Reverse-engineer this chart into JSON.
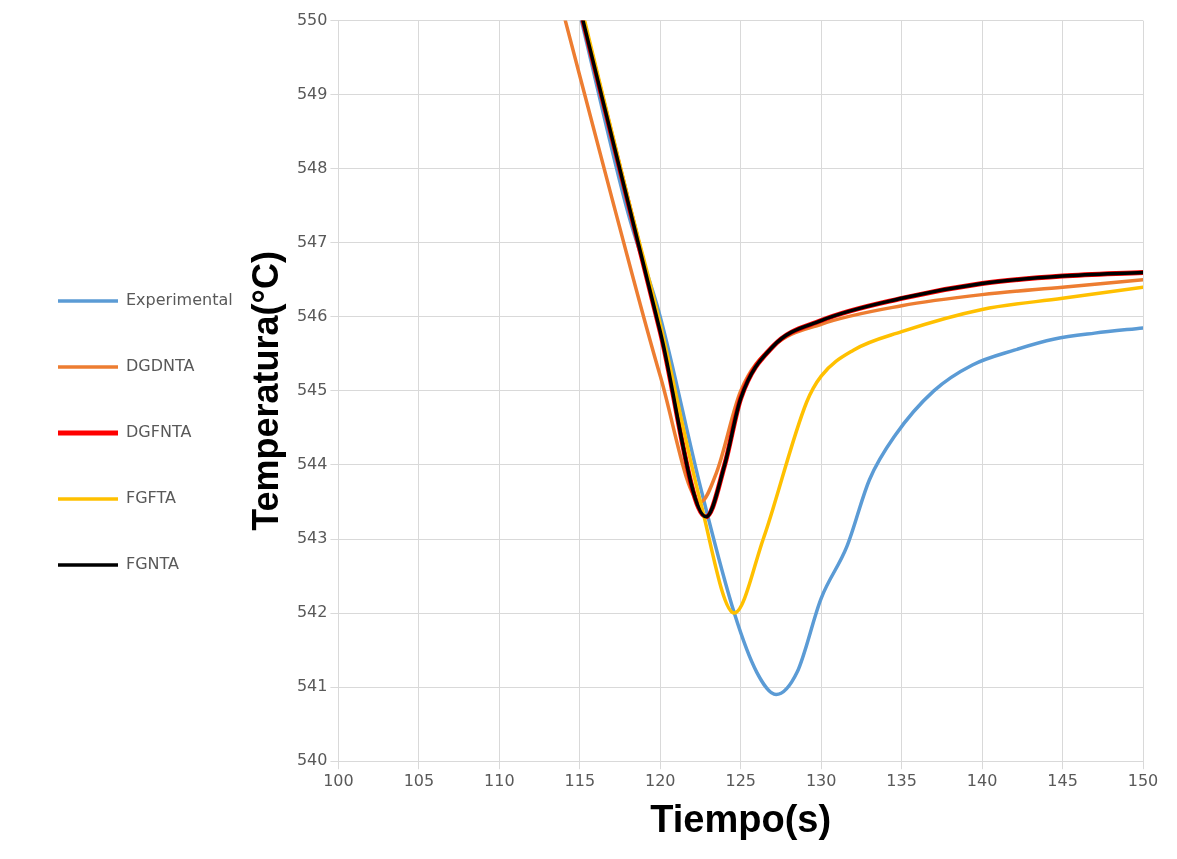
{
  "chart_data": {
    "type": "line",
    "xlabel": "Tiempo(s)",
    "ylabel": "Temperatura(°C)",
    "xlim": [
      100,
      150
    ],
    "xticks": [
      100,
      105,
      110,
      115,
      120,
      125,
      130,
      135,
      140,
      145,
      150
    ],
    "ylim": [
      540,
      550
    ],
    "yticks": [
      540,
      541,
      542,
      543,
      544,
      545,
      546,
      547,
      548,
      549,
      550
    ],
    "grid": true,
    "legend": "left",
    "marker": "none",
    "line_style": "solid",
    "series": [
      {
        "name": "Experimental",
        "color": "#5b9bd5",
        "x": [
          115.1,
          118,
          120,
          122.5,
          124.6,
          126,
          127.2,
          128.5,
          130,
          131.6,
          133,
          134.6,
          137,
          139.4,
          142,
          144.5,
          147,
          150
        ],
        "values": [
          550,
          547.4,
          546.0,
          543.7,
          542.0,
          541.2,
          540.9,
          541.2,
          542.2,
          542.9,
          543.8,
          544.4,
          545.0,
          545.35,
          545.55,
          545.7,
          545.78,
          545.85
        ]
      },
      {
        "name": "DGDNTA",
        "color": "#ed7d31",
        "x": [
          114.1,
          117,
          120,
          122.5,
          123.5,
          125,
          127,
          130,
          135,
          140,
          145,
          150
        ],
        "values": [
          550,
          547.6,
          545.2,
          543.5,
          543.9,
          545.0,
          545.6,
          545.9,
          546.15,
          546.3,
          546.4,
          546.5
        ]
      },
      {
        "name": "DGFNTA",
        "color": "#ff0000",
        "x": [
          115.2,
          118,
          120,
          122.85,
          124,
          125,
          127,
          130,
          135,
          140,
          145,
          150
        ],
        "values": [
          550,
          547.55,
          545.8,
          543.3,
          544.0,
          544.9,
          545.6,
          545.95,
          546.25,
          546.45,
          546.55,
          546.6
        ]
      },
      {
        "name": "FGFTA",
        "color": "#ffc000",
        "x": [
          115.3,
          118,
          120,
          122.5,
          124.6,
          126.4,
          129.1,
          130,
          132,
          135,
          140,
          145,
          150
        ],
        "values": [
          550,
          547.6,
          545.9,
          543.5,
          542.0,
          543.0,
          544.85,
          545.2,
          545.55,
          545.8,
          546.1,
          546.25,
          546.4
        ]
      },
      {
        "name": "FGNTA",
        "color": "#000000",
        "x": [
          115.2,
          118,
          120,
          122.85,
          124,
          125,
          127,
          130,
          135,
          140,
          145,
          150
        ],
        "values": [
          550,
          547.55,
          545.8,
          543.3,
          544.0,
          544.9,
          545.6,
          545.95,
          546.25,
          546.45,
          546.55,
          546.6
        ]
      }
    ]
  }
}
